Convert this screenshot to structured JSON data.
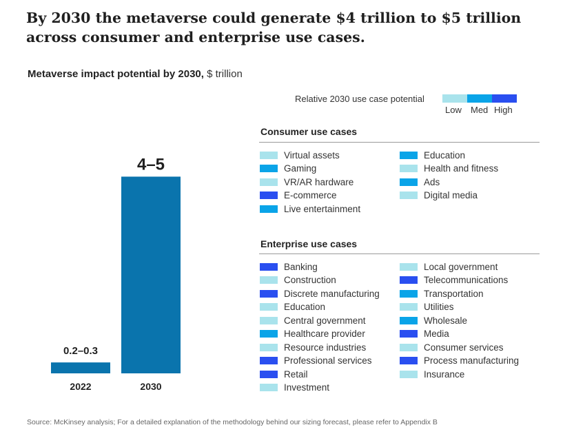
{
  "headline": "By 2030 the metaverse could generate $4 trillion to $5 trillion across consumer and enterprise use cases.",
  "subtitle": {
    "main": "Metaverse impact potential by 2030,",
    "unit": "$ trillion"
  },
  "chart_data": {
    "type": "bar",
    "categories": [
      "2022",
      "2030"
    ],
    "values": [
      0.25,
      4.5
    ],
    "ranges": [
      [
        0.2,
        0.3
      ],
      [
        4,
        5
      ]
    ],
    "data_labels": [
      "0.2–0.3",
      "4–5"
    ],
    "title": "Metaverse impact potential by 2030,",
    "ylabel": "$ trillion",
    "ylim": [
      0,
      5.2
    ],
    "grid": false,
    "bar_color": "#0a74ad"
  },
  "potential_legend": {
    "label": "Relative 2030 use case potential",
    "levels": [
      {
        "name": "Low",
        "color": "#a9e3ec"
      },
      {
        "name": "Med",
        "color": "#0aa4e8"
      },
      {
        "name": "High",
        "color": "#2a4ff0"
      }
    ]
  },
  "consumer": {
    "title": "Consumer use cases",
    "col1": [
      {
        "label": "Virtual assets",
        "level": "low"
      },
      {
        "label": "Gaming",
        "level": "med"
      },
      {
        "label": "VR/AR hardware",
        "level": "low"
      },
      {
        "label": "E-commerce",
        "level": "high"
      },
      {
        "label": "Live entertainment",
        "level": "med"
      }
    ],
    "col2": [
      {
        "label": "Education",
        "level": "med"
      },
      {
        "label": "Health and fitness",
        "level": "low"
      },
      {
        "label": "Ads",
        "level": "med"
      },
      {
        "label": "Digital media",
        "level": "low"
      }
    ]
  },
  "enterprise": {
    "title": "Enterprise use cases",
    "col1": [
      {
        "label": "Banking",
        "level": "high"
      },
      {
        "label": "Construction",
        "level": "low"
      },
      {
        "label": "Discrete manufacturing",
        "level": "high"
      },
      {
        "label": "Education",
        "level": "low"
      },
      {
        "label": "Central government",
        "level": "low"
      },
      {
        "label": "Healthcare provider",
        "level": "med"
      },
      {
        "label": "Resource industries",
        "level": "low"
      },
      {
        "label": "Professional services",
        "level": "high"
      },
      {
        "label": "Retail",
        "level": "high"
      },
      {
        "label": "Investment",
        "level": "low"
      }
    ],
    "col2": [
      {
        "label": "Local government",
        "level": "low"
      },
      {
        "label": "Telecommunications",
        "level": "high"
      },
      {
        "label": "Transportation",
        "level": "med"
      },
      {
        "label": "Utilities",
        "level": "low"
      },
      {
        "label": "Wholesale",
        "level": "med"
      },
      {
        "label": "Media",
        "level": "high"
      },
      {
        "label": "Consumer services",
        "level": "low"
      },
      {
        "label": "Process manufacturing",
        "level": "high"
      },
      {
        "label": "Insurance",
        "level": "low"
      }
    ]
  },
  "source": "Source: McKinsey analysis; For a detailed explanation of the methodology behind our sizing forecast, please refer to Appendix B"
}
